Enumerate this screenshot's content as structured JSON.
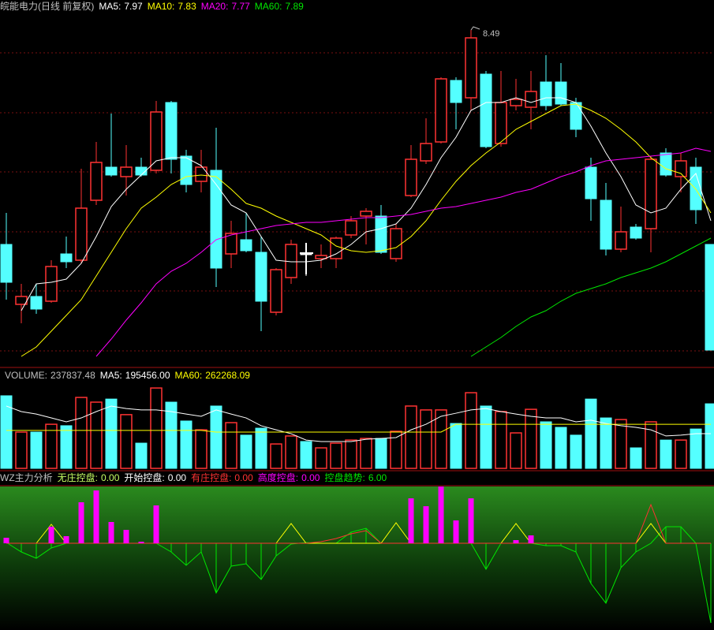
{
  "chart_data": [
    {
      "type": "candlestick",
      "title": "皖能电力(日线 前复权)",
      "title_color": "#c0c0c0",
      "up_color": "#ff3232",
      "down_color": "#54ffff",
      "flat_color": "#ffffff",
      "ylim": [
        6.38,
        8.68
      ],
      "open": [
        7.13,
        6.75,
        6.8,
        6.77,
        7.07,
        7.03,
        7.41,
        7.62,
        7.56,
        7.62,
        7.6,
        8.03,
        7.69,
        7.53,
        7.6,
        7.07,
        7.16,
        7.08,
        6.7,
        6.92,
        7.07,
        7.04,
        7.04,
        7.19,
        7.31,
        7.31,
        7.04,
        7.44,
        7.66,
        7.78,
        8.17,
        8.06,
        8.21,
        7.77,
        8.01,
        8.0,
        8.16,
        8.16,
        8.03,
        7.62,
        7.41,
        7.1,
        7.24,
        7.23,
        7.71,
        7.56,
        7.62,
        7.13
      ],
      "high": [
        7.33,
        6.88,
        6.88,
        7.03,
        7.18,
        7.61,
        7.78,
        7.96,
        7.76,
        7.68,
        8.04,
        8.04,
        7.73,
        7.73,
        7.87,
        7.28,
        7.33,
        7.18,
        6.98,
        7.16,
        7.14,
        7.13,
        7.18,
        7.31,
        7.36,
        7.38,
        7.26,
        7.76,
        7.93,
        8.19,
        8.19,
        8.49,
        8.23,
        8.23,
        8.18,
        8.23,
        8.33,
        8.28,
        8.06,
        7.68,
        7.52,
        7.37,
        7.26,
        7.69,
        7.74,
        7.71,
        7.68,
        7.13
      ],
      "low": [
        6.78,
        6.63,
        6.69,
        6.76,
        6.98,
        7.01,
        7.38,
        7.56,
        7.44,
        7.56,
        7.58,
        7.58,
        7.46,
        7.46,
        6.86,
        6.98,
        7.08,
        6.58,
        6.68,
        6.88,
        6.93,
        6.98,
        6.98,
        7.17,
        7.13,
        7.07,
        7.02,
        7.43,
        7.64,
        7.77,
        7.86,
        7.98,
        7.74,
        7.75,
        7.98,
        7.86,
        7.98,
        8.01,
        7.81,
        7.28,
        7.06,
        7.08,
        7.16,
        7.08,
        7.56,
        7.46,
        7.26,
        6.46
      ],
      "close": [
        6.89,
        6.8,
        6.72,
        6.99,
        7.02,
        7.36,
        7.65,
        7.57,
        7.62,
        7.57,
        7.97,
        7.67,
        7.51,
        7.62,
        6.98,
        7.2,
        7.09,
        6.77,
        6.97,
        7.13,
        7.07,
        7.06,
        7.17,
        7.28,
        7.34,
        7.08,
        7.23,
        7.67,
        7.77,
        8.18,
        8.03,
        8.44,
        7.75,
        8.03,
        8.05,
        8.1,
        8.01,
        8.02,
        7.86,
        7.42,
        7.1,
        7.21,
        7.17,
        7.67,
        7.57,
        7.66,
        7.35,
        6.46
      ],
      "annotations": [
        {
          "value": 8.49
        }
      ],
      "series": [
        {
          "name": "MA5:",
          "readout": 7.97,
          "color": "#ffffff",
          "values": [
            null,
            6.71,
            6.88,
            6.89,
            6.91,
            7.01,
            7.18,
            7.37,
            7.48,
            7.57,
            7.66,
            7.68,
            7.68,
            7.63,
            7.51,
            7.38,
            7.33,
            7.18,
            7.03,
            7.02,
            7.02,
            7.03,
            7.07,
            7.13,
            7.21,
            7.23,
            7.26,
            7.36,
            7.51,
            7.68,
            7.81,
            7.98,
            8.03,
            8.03,
            8.06,
            8.03,
            8.06,
            8.06,
            8.03,
            7.88,
            7.71,
            7.56,
            7.38,
            7.33,
            7.36,
            7.48,
            7.58,
            7.28
          ]
        },
        {
          "name": "MA10:",
          "readout": 7.83,
          "color": "#ffff00",
          "values": [
            null,
            6.42,
            6.48,
            6.58,
            6.68,
            6.78,
            6.93,
            7.08,
            7.23,
            7.36,
            7.43,
            7.51,
            7.56,
            7.57,
            7.56,
            7.48,
            7.39,
            7.36,
            7.31,
            7.27,
            7.23,
            7.19,
            7.12,
            7.09,
            7.08,
            7.09,
            7.11,
            7.18,
            7.28,
            7.41,
            7.53,
            7.63,
            7.71,
            7.78,
            7.86,
            7.91,
            7.96,
            8.01,
            8.02,
            7.98,
            7.93,
            7.86,
            7.78,
            7.68,
            7.61,
            7.58,
            7.48,
            7.33
          ]
        },
        {
          "name": "MA20:",
          "readout": 7.77,
          "color": "#ff00ff",
          "values": [
            null,
            null,
            null,
            null,
            null,
            null,
            6.42,
            6.53,
            6.65,
            6.76,
            6.88,
            6.96,
            7.01,
            7.08,
            7.16,
            7.19,
            7.21,
            7.23,
            7.25,
            7.26,
            7.27,
            7.27,
            7.28,
            7.29,
            7.3,
            7.3,
            7.31,
            7.32,
            7.34,
            7.36,
            7.37,
            7.39,
            7.41,
            7.43,
            7.46,
            7.48,
            7.52,
            7.56,
            7.59,
            7.63,
            7.66,
            7.67,
            7.68,
            7.69,
            7.7,
            7.71,
            7.74,
            7.72
          ]
        },
        {
          "name": "MA60:",
          "readout": 7.89,
          "color": "#00e600",
          "values": [
            null,
            null,
            null,
            null,
            null,
            null,
            null,
            null,
            null,
            null,
            null,
            null,
            null,
            null,
            null,
            null,
            null,
            null,
            null,
            null,
            null,
            null,
            null,
            null,
            null,
            null,
            null,
            null,
            null,
            null,
            null,
            6.42,
            6.48,
            6.54,
            6.61,
            6.67,
            6.71,
            6.77,
            6.82,
            6.85,
            6.88,
            6.92,
            6.95,
            6.98,
            7.02,
            7.07,
            7.12,
            7.17
          ]
        }
      ]
    },
    {
      "type": "bar",
      "ylim": [
        0,
        400000
      ],
      "series": [
        {
          "name": "VOLUME:",
          "readout": 237837.48,
          "label_color": "#c0c0c0",
          "style": "volume",
          "values": [
            354000,
            177000,
            177000,
            215000,
            208000,
            346000,
            323000,
            338000,
            262000,
            123000,
            392000,
            323000,
            231000,
            188000,
            304000,
            223000,
            162000,
            196000,
            119000,
            158000,
            131000,
            100000,
            123000,
            138000,
            146000,
            146000,
            181000,
            304000,
            285000,
            285000,
            219000,
            369000,
            304000,
            277000,
            173000,
            288000,
            227000,
            200000,
            162000,
            338000,
            246000,
            238000,
            100000,
            227000,
            138000,
            138000,
            192000,
            315000
          ]
        },
        {
          "name": "MA5:",
          "readout": {
            "value": 195456,
            "label": "195456.00"
          },
          "color": "#ffffff",
          "style": "line",
          "values": [
            304000,
            277000,
            265000,
            246000,
            227000,
            246000,
            277000,
            304000,
            292000,
            285000,
            285000,
            277000,
            265000,
            254000,
            285000,
            265000,
            246000,
            208000,
            188000,
            169000,
            138000,
            131000,
            131000,
            131000,
            142000,
            146000,
            150000,
            188000,
            215000,
            254000,
            269000,
            285000,
            292000,
            277000,
            265000,
            254000,
            246000,
            246000,
            227000,
            235000,
            219000,
            208000,
            200000,
            188000,
            158000,
            162000,
            169000,
            169000
          ]
        },
        {
          "name": "MA60:",
          "readout": 262268.09,
          "color": "#ffff00",
          "style": "line",
          "values": [
            185000,
            185000,
            185000,
            185000,
            185000,
            185000,
            185000,
            185000,
            185000,
            185000,
            185000,
            185000,
            185000,
            185000,
            177000,
            177000,
            177000,
            177000,
            177000,
            177000,
            177000,
            177000,
            177000,
            177000,
            177000,
            177000,
            177000,
            177000,
            177000,
            177000,
            215000,
            215000,
            215000,
            215000,
            215000,
            215000,
            215000,
            215000,
            215000,
            215000,
            215000,
            215000,
            215000,
            215000,
            215000,
            215000,
            215000,
            215000
          ]
        }
      ]
    },
    {
      "type": "indicator",
      "title": "WZ主力分析",
      "title_color": "#c0c0c0",
      "ylim": [
        -10.8,
        7.2
      ],
      "series": [
        {
          "name": "无庄控盘:",
          "readout": {
            "value": 0,
            "label": "0.00"
          },
          "color": "#c8ff64"
        },
        {
          "name": "开始控盘:",
          "readout": {
            "value": 0,
            "label": "0.00"
          },
          "color": "#ffff00",
          "label_color": "#ffffff",
          "style": "line",
          "values": [
            0,
            0,
            0,
            2.4,
            0,
            0,
            0,
            0,
            0,
            0,
            0,
            0,
            0,
            0,
            0,
            0,
            0,
            0,
            0,
            2.5,
            0,
            0,
            0,
            0,
            0,
            0,
            2.6,
            0,
            0,
            0,
            0,
            0,
            0,
            0,
            2.5,
            0,
            0,
            0,
            0,
            0,
            0,
            0,
            0,
            2.5,
            0,
            0,
            0,
            0
          ]
        },
        {
          "name": "有庄控盘:",
          "readout": {
            "value": 0,
            "label": "0.00"
          },
          "color": "#ff3232",
          "style": "line",
          "values": [
            0,
            0,
            0,
            0,
            0,
            0,
            0,
            0,
            0,
            0,
            0,
            0,
            0,
            0,
            0,
            0,
            0,
            0,
            0,
            0,
            0,
            0.2,
            0.6,
            1.2,
            1.6,
            0,
            0,
            0,
            0,
            0,
            0,
            0,
            0,
            0,
            0,
            0,
            0,
            0,
            0,
            0,
            0,
            0,
            0,
            4.9,
            0,
            0,
            0,
            0
          ]
        },
        {
          "name": "高度控盘:",
          "readout": {
            "value": 0,
            "label": "0.00"
          },
          "color": "#ff00ff",
          "style": "bar",
          "values": [
            0.7,
            null,
            null,
            2.1,
            0.9,
            5.2,
            6.7,
            2.7,
            1.7,
            0.2,
            4.8,
            null,
            null,
            null,
            null,
            null,
            null,
            null,
            null,
            null,
            null,
            null,
            null,
            null,
            null,
            null,
            null,
            5.7,
            4.7,
            7.2,
            2.9,
            5.7,
            null,
            null,
            0.4,
            1.0,
            null,
            null,
            null,
            null,
            null,
            null,
            null,
            null,
            null,
            null,
            null,
            null
          ]
        },
        {
          "name": "控盘趋势:",
          "readout": {
            "value": 6,
            "label": "6.00"
          },
          "color": "#00e600",
          "style": "sticks",
          "values": [
            0.1,
            -1.1,
            -1.9,
            -0.6,
            0,
            0,
            0,
            0,
            0,
            0,
            0,
            -1.1,
            -2.8,
            -1.1,
            -6.3,
            -2.9,
            -2.6,
            -4.6,
            -1.6,
            -0.1,
            0.1,
            0,
            0,
            1.4,
            1.9,
            0,
            0,
            0,
            0,
            0,
            0,
            0,
            -3.3,
            0,
            0,
            0,
            -0.3,
            -0.3,
            -1.1,
            -5.1,
            -7.6,
            -3.1,
            -1.1,
            0,
            2.1,
            2.1,
            0,
            -10.1
          ]
        }
      ]
    }
  ]
}
